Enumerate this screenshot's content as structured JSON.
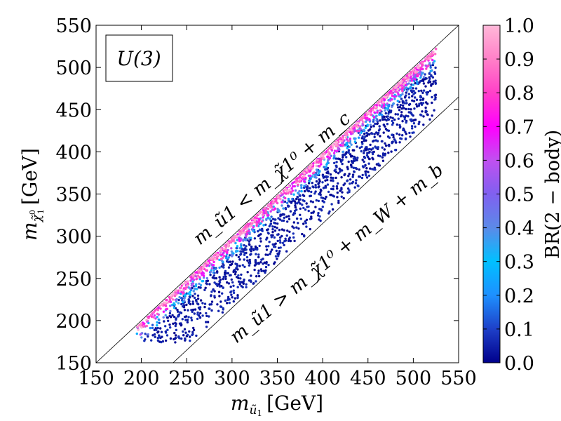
{
  "chart_data": {
    "type": "scatter",
    "title": "",
    "xlabel": "m_{ũ1} [GeV]",
    "xlabel_main": "m",
    "xlabel_sub": "ũ",
    "xlabel_subsub": "1",
    "xlabel_unit": "[GeV]",
    "ylabel": "m_{χ̃1⁰} [GeV]",
    "ylabel_main": "m",
    "ylabel_sub": "χ̃",
    "ylabel_subsup": "0",
    "ylabel_subsub": "1",
    "ylabel_unit": "[GeV]",
    "xlim": [
      150,
      550
    ],
    "ylim": [
      150,
      550
    ],
    "xticks": [
      "150",
      "200",
      "250",
      "300",
      "350",
      "400",
      "450",
      "500",
      "550"
    ],
    "yticks": [
      "150",
      "200",
      "250",
      "300",
      "350",
      "400",
      "450",
      "500",
      "550"
    ],
    "legend_box": "U(3)",
    "legend_placement": "top-left",
    "grid": false,
    "boundary_lines": [
      {
        "name": "m_ũ1 = m_χ̃1⁰ + m_c",
        "offset": 0
      },
      {
        "name": "m_ũ1 = m_χ̃1⁰ + m_W + m_b",
        "offset": 85
      }
    ],
    "annotation_upper": "m_ũ1 < m_χ̃1⁰ + m_c",
    "annotation_lower": "m_ũ1 > m_χ̃1⁰ + m_W + m_b",
    "colorbar": {
      "label": "BR(2 − body)",
      "range": [
        0.0,
        1.0
      ],
      "ticks": [
        "0.0",
        "0.1",
        "0.2",
        "0.3",
        "0.4",
        "0.5",
        "0.6",
        "0.7",
        "0.8",
        "0.9",
        "1.0"
      ],
      "colors": [
        "#00008b",
        "#1e40c8",
        "#1e90ff",
        "#00c0ff",
        "#5b8ae8",
        "#8060f0",
        "#c050f0",
        "#ff00ff",
        "#ff40c8",
        "#ff80c8",
        "#ffb8d8"
      ]
    },
    "series": [
      {
        "x_range": [
          195,
          525
        ],
        "description_y_fn": "y ≈ x − gap, gap in [3, 80] GeV",
        "point_count": 2600
      }
    ]
  }
}
